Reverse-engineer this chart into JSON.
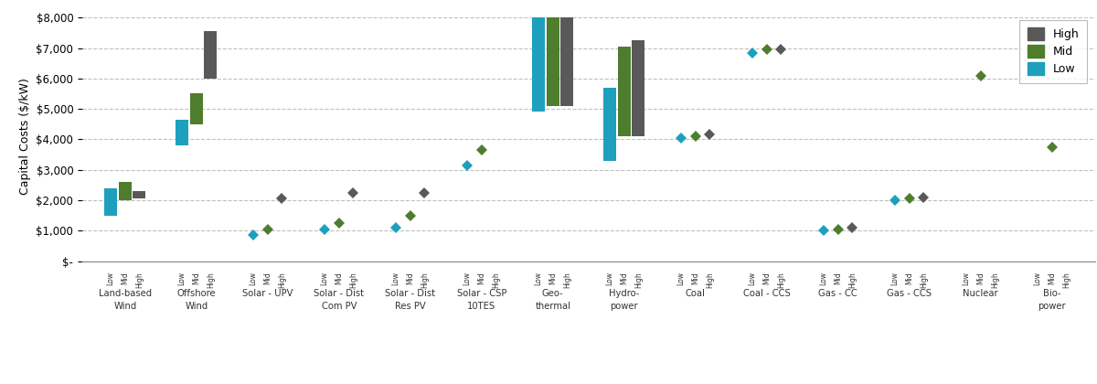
{
  "ylabel": "Capital Costs ($/kW)",
  "ylim": [
    0,
    8200
  ],
  "yticks": [
    0,
    1000,
    2000,
    3000,
    4000,
    5000,
    6000,
    7000,
    8000
  ],
  "ytick_labels": [
    "$-",
    "$1,000",
    "$2,000",
    "$3,000",
    "$4,000",
    "$5,000",
    "$6,000",
    "$7,000",
    "$8,000"
  ],
  "colors": {
    "High": "#595959",
    "Mid": "#4e7d2d",
    "Low": "#1e9fbe"
  },
  "background": "#ffffff",
  "categories": [
    "Land-based\nWind",
    "Offshore\nWind",
    "Solar - UPV",
    "Solar - Dist\nCom PV",
    "Solar - Dist\nRes PV",
    "Solar - CSP\n10TES",
    "Geo-\nthermal",
    "Hydro-\npower",
    "Coal",
    "Coal - CCS",
    "Gas - CC",
    "Gas - CCS",
    "Nuclear",
    "Bio-\npower"
  ],
  "cat_data": {
    "Land-based\nWind": {
      "Low_bar": [
        1500,
        2400
      ],
      "Mid_bar": [
        2000,
        2600
      ],
      "High_bar": [
        2050,
        2300
      ]
    },
    "Offshore\nWind": {
      "Low_bar": [
        3800,
        4650
      ],
      "Mid_bar": [
        4500,
        5500
      ],
      "High_bar": [
        6000,
        7550
      ]
    },
    "Solar - UPV": {
      "Low_pt": 870,
      "Mid_pt": 1050,
      "High_pt": 2050
    },
    "Solar - Dist\nCom PV": {
      "Low_pt": 1050,
      "Mid_pt": 1250,
      "High_pt": 2250
    },
    "Solar - Dist\nRes PV": {
      "Low_pt": 1100,
      "Mid_pt": 1500,
      "High_pt": 2250
    },
    "Solar - CSP\n10TES": {
      "Low_pt": 3150,
      "Mid_pt": 3650
    },
    "Geo-\nthermal": {
      "Low_bar": [
        4900,
        8000
      ],
      "Mid_bar": [
        5100,
        8000
      ],
      "High_bar": [
        5100,
        8000
      ]
    },
    "Hydro-\npower": {
      "Low_bar": [
        3300,
        5700
      ],
      "Mid_bar": [
        4100,
        7050
      ],
      "High_bar": [
        4100,
        7250
      ]
    },
    "Coal": {
      "Low_pt": 4050,
      "Mid_pt": 4100,
      "High_pt": 4150
    },
    "Coal - CCS": {
      "Low_pt": 6850,
      "Mid_pt": 6950,
      "High_pt": 6950
    },
    "Gas - CC": {
      "Low_pt": 1000,
      "Mid_pt": 1050,
      "High_pt": 1100
    },
    "Gas - CCS": {
      "Low_pt": 2000,
      "Mid_pt": 2050,
      "High_pt": 2100
    },
    "Nuclear": {
      "Mid_pt": 6100
    },
    "Bio-\npower": {
      "Mid_pt": 3750
    }
  }
}
